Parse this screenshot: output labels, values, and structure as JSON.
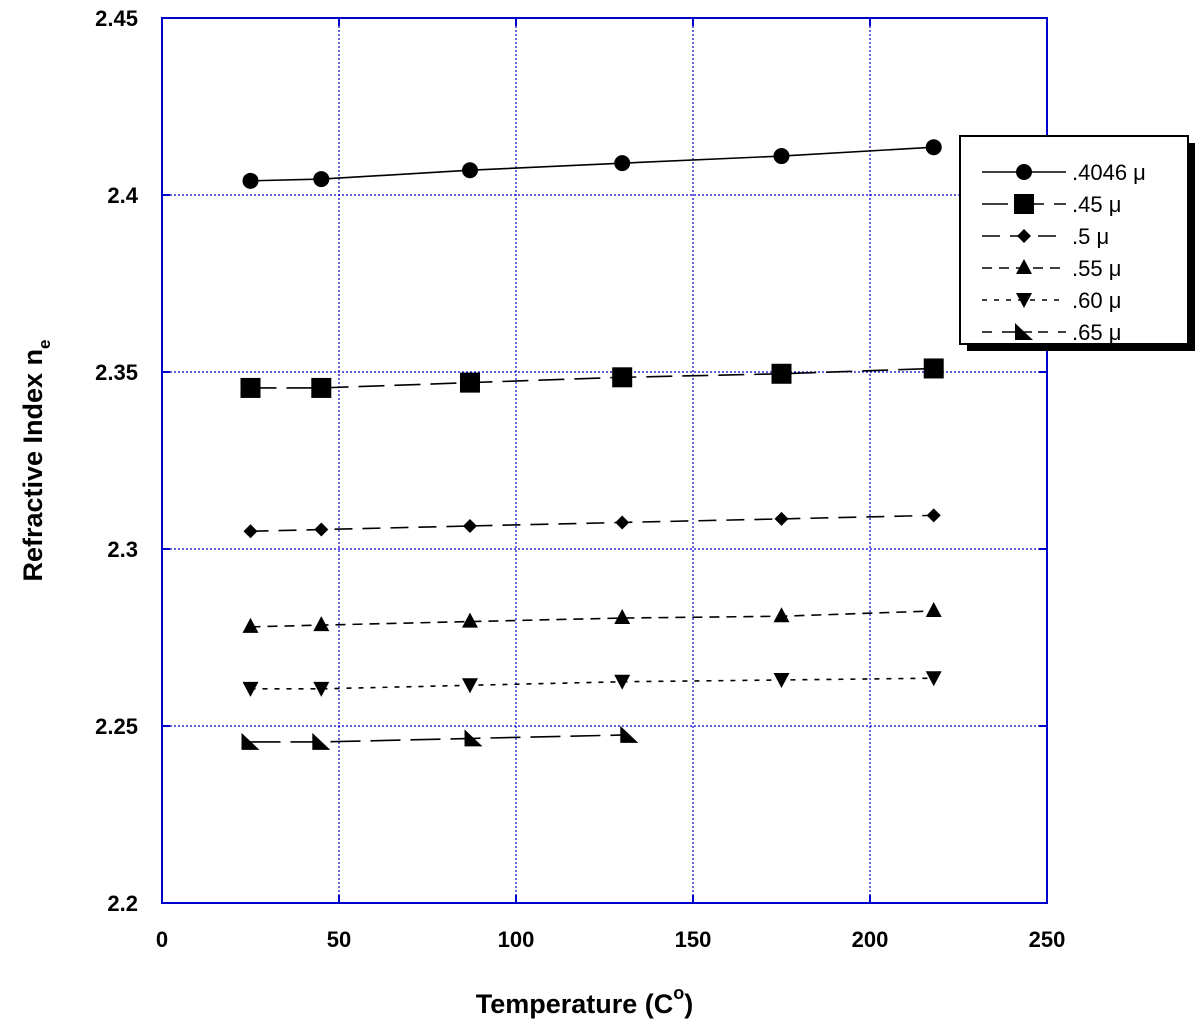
{
  "chart_data": {
    "type": "line",
    "xlabel": "Temperature (C",
    "xlabel_sup": "o",
    "xlabel_end": ")",
    "ylabel": "Refractive Index n",
    "ylabel_sub": "e",
    "xlim": [
      0,
      250
    ],
    "ylim": [
      2.2,
      2.45
    ],
    "x_ticks": [
      0,
      50,
      100,
      150,
      200,
      250
    ],
    "x_tick_labels": [
      "0",
      "50",
      "100",
      "150",
      "200",
      "250"
    ],
    "y_ticks": [
      2.2,
      2.25,
      2.3,
      2.35,
      2.4,
      2.45
    ],
    "y_tick_labels": [
      "2.2",
      "2.25",
      "2.3",
      "2.35",
      "2.4",
      "2.45"
    ],
    "grid": true,
    "grid_color": "#0000cc",
    "frame_color": "#0000cc",
    "legend_position": "top-right",
    "series": [
      {
        "name": ".4046 μ",
        "marker": "circle",
        "dash": "solid",
        "x": [
          25,
          45,
          87,
          130,
          175,
          218
        ],
        "y": [
          2.404,
          2.4045,
          2.407,
          2.409,
          2.411,
          2.4135
        ]
      },
      {
        "name": ".45 μ",
        "marker": "square",
        "dash": "longdash",
        "x": [
          25,
          45,
          87,
          130,
          175,
          218
        ],
        "y": [
          2.3455,
          2.3455,
          2.347,
          2.3485,
          2.3495,
          2.351
        ]
      },
      {
        "name": ".5 μ",
        "marker": "diamond",
        "dash": "dash",
        "x": [
          25,
          45,
          87,
          130,
          175,
          218
        ],
        "y": [
          2.305,
          2.3055,
          2.3065,
          2.3075,
          2.3085,
          2.3095
        ]
      },
      {
        "name": ".55 μ",
        "marker": "triangle-up",
        "dash": "shortdash",
        "x": [
          25,
          45,
          87,
          130,
          175,
          218
        ],
        "y": [
          2.278,
          2.2785,
          2.2795,
          2.2805,
          2.281,
          2.2825
        ]
      },
      {
        "name": ".60 μ",
        "marker": "triangle-down",
        "dash": "dot",
        "x": [
          25,
          45,
          87,
          130,
          175,
          218
        ],
        "y": [
          2.2605,
          2.2605,
          2.2615,
          2.2625,
          2.263,
          2.2635
        ]
      },
      {
        "name": ".65 μ",
        "marker": "triangle-right",
        "dash": "dashdot",
        "x": [
          25,
          45,
          88,
          132
        ],
        "y": [
          2.2455,
          2.2455,
          2.2465,
          2.2475
        ]
      }
    ]
  }
}
